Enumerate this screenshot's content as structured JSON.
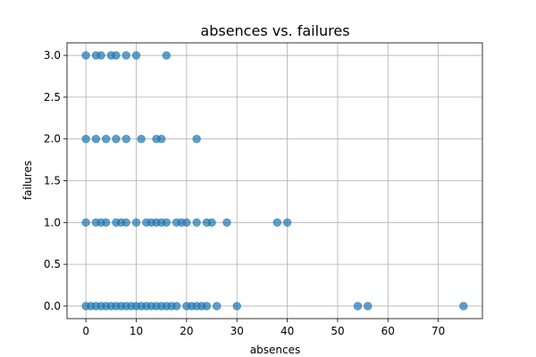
{
  "chart_data": {
    "type": "scatter",
    "title": "absences vs. failures",
    "xlabel": "absences",
    "ylabel": "failures",
    "xlim": [
      -3.75,
      78.75
    ],
    "ylim": [
      -0.15,
      3.15
    ],
    "xticks": [
      0,
      10,
      20,
      30,
      40,
      50,
      60,
      70
    ],
    "yticks": [
      0.0,
      0.5,
      1.0,
      1.5,
      2.0,
      2.5,
      3.0
    ],
    "xtick_labels": [
      "0",
      "10",
      "20",
      "30",
      "40",
      "50",
      "60",
      "70"
    ],
    "ytick_labels": [
      "0.0",
      "0.5",
      "1.0",
      "1.5",
      "2.0",
      "2.5",
      "3.0"
    ],
    "grid": true,
    "marker_color": "#1f77b4",
    "marker_alpha": 0.7,
    "series": [
      {
        "points": [
          [
            0,
            0
          ],
          [
            1,
            0
          ],
          [
            2,
            0
          ],
          [
            3,
            0
          ],
          [
            4,
            0
          ],
          [
            5,
            0
          ],
          [
            6,
            0
          ],
          [
            7,
            0
          ],
          [
            8,
            0
          ],
          [
            9,
            0
          ],
          [
            10,
            0
          ],
          [
            11,
            0
          ],
          [
            12,
            0
          ],
          [
            13,
            0
          ],
          [
            14,
            0
          ],
          [
            15,
            0
          ],
          [
            16,
            0
          ],
          [
            17,
            0
          ],
          [
            18,
            0
          ],
          [
            20,
            0
          ],
          [
            21,
            0
          ],
          [
            22,
            0
          ],
          [
            23,
            0
          ],
          [
            24,
            0
          ],
          [
            26,
            0
          ],
          [
            30,
            0
          ],
          [
            54,
            0
          ],
          [
            56,
            0
          ],
          [
            75,
            0
          ],
          [
            0,
            1
          ],
          [
            2,
            1
          ],
          [
            3,
            1
          ],
          [
            4,
            1
          ],
          [
            6,
            1
          ],
          [
            7,
            1
          ],
          [
            8,
            1
          ],
          [
            10,
            1
          ],
          [
            12,
            1
          ],
          [
            13,
            1
          ],
          [
            14,
            1
          ],
          [
            15,
            1
          ],
          [
            16,
            1
          ],
          [
            18,
            1
          ],
          [
            19,
            1
          ],
          [
            20,
            1
          ],
          [
            22,
            1
          ],
          [
            24,
            1
          ],
          [
            25,
            1
          ],
          [
            28,
            1
          ],
          [
            38,
            1
          ],
          [
            40,
            1
          ],
          [
            0,
            2
          ],
          [
            2,
            2
          ],
          [
            4,
            2
          ],
          [
            6,
            2
          ],
          [
            8,
            2
          ],
          [
            11,
            2
          ],
          [
            14,
            2
          ],
          [
            15,
            2
          ],
          [
            22,
            2
          ],
          [
            0,
            3
          ],
          [
            2,
            3
          ],
          [
            3,
            3
          ],
          [
            5,
            3
          ],
          [
            6,
            3
          ],
          [
            8,
            3
          ],
          [
            10,
            3
          ],
          [
            16,
            3
          ]
        ]
      }
    ]
  }
}
